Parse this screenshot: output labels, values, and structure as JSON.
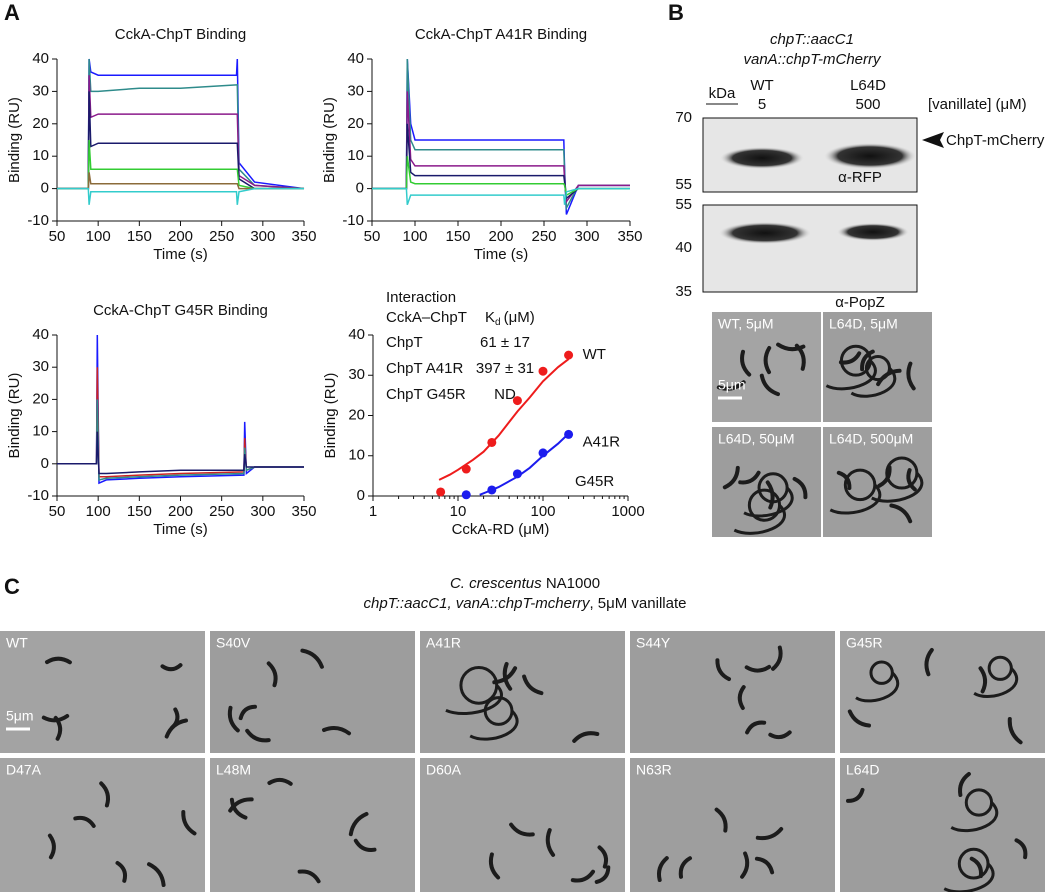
{
  "panel_labels": [
    "A",
    "B",
    "C"
  ],
  "chart_data": [
    {
      "type": "line",
      "title": "CckA-ChpT Binding",
      "xlabel": "Time (s)",
      "ylabel": "Binding (RU)",
      "xlim": [
        50,
        350
      ],
      "xticks": [
        50,
        100,
        150,
        200,
        250,
        300,
        350
      ],
      "ylim": [
        -10,
        40
      ],
      "yticks": [
        -10,
        0,
        10,
        20,
        30,
        40
      ],
      "x": [
        50,
        88,
        89,
        91,
        100,
        150,
        200,
        268,
        269,
        271,
        290,
        350
      ],
      "series": [
        {
          "color": "#1a1aff",
          "values": [
            0,
            0,
            40,
            36,
            35,
            35,
            35,
            35,
            40,
            8,
            2,
            0
          ]
        },
        {
          "color": "#2e8b8b",
          "values": [
            0,
            0,
            40,
            30,
            30,
            31,
            31,
            32,
            32,
            6,
            1,
            0
          ]
        },
        {
          "color": "#8b1a8b",
          "values": [
            0,
            0,
            35,
            22,
            23,
            23,
            23,
            23,
            23,
            4,
            1,
            0
          ]
        },
        {
          "color": "#1a1a6b",
          "values": [
            0,
            0,
            30,
            13,
            14,
            14,
            14,
            14,
            14,
            3,
            0,
            0
          ]
        },
        {
          "color": "#33cc33",
          "values": [
            0,
            0,
            15,
            6,
            6,
            6,
            6,
            6,
            6,
            1,
            0,
            0
          ]
        },
        {
          "color": "#8b6b3a",
          "values": [
            0,
            0,
            5,
            1.5,
            1.5,
            1.5,
            1.5,
            1.5,
            1.5,
            0,
            0,
            0
          ]
        },
        {
          "color": "#33cccc",
          "values": [
            0,
            0,
            -5,
            -1,
            -1,
            -1,
            -1,
            -1,
            -5,
            -1,
            0,
            0
          ]
        }
      ]
    },
    {
      "type": "line",
      "title": "CckA-ChpT A41R Binding",
      "xlabel": "Time (s)",
      "ylabel": "Binding (RU)",
      "xlim": [
        50,
        350
      ],
      "xticks": [
        50,
        100,
        150,
        200,
        250,
        300,
        350
      ],
      "ylim": [
        -10,
        40
      ],
      "yticks": [
        -10,
        0,
        10,
        20,
        30,
        40
      ],
      "x": [
        50,
        90,
        91,
        95,
        100,
        150,
        200,
        273,
        274,
        276,
        290,
        350
      ],
      "series": [
        {
          "color": "#1a1aff",
          "values": [
            0,
            0,
            40,
            20,
            15,
            15,
            15,
            15,
            6,
            -8,
            1,
            1
          ]
        },
        {
          "color": "#2e8b8b",
          "values": [
            0,
            0,
            40,
            15,
            12,
            12,
            12,
            12,
            5,
            -6,
            1,
            1
          ]
        },
        {
          "color": "#8b1a8b",
          "values": [
            0,
            0,
            30,
            9,
            7,
            7,
            7,
            7,
            3,
            -4,
            1,
            1
          ]
        },
        {
          "color": "#1a1a6b",
          "values": [
            0,
            0,
            20,
            5,
            4,
            4,
            4,
            4,
            2,
            -3,
            0,
            0
          ]
        },
        {
          "color": "#33cc33",
          "values": [
            0,
            0,
            10,
            2,
            1.5,
            1.5,
            1.5,
            1.5,
            1,
            -2,
            0,
            0
          ]
        },
        {
          "color": "#33cccc",
          "values": [
            0,
            0,
            -5,
            -2,
            -2,
            -2,
            -2,
            -2,
            -5,
            -1,
            0,
            0
          ]
        }
      ]
    },
    {
      "type": "line",
      "title": "CckA-ChpT G45R Binding",
      "xlabel": "Time (s)",
      "ylabel": "Binding (RU)",
      "xlim": [
        50,
        350
      ],
      "xticks": [
        50,
        100,
        150,
        200,
        250,
        300,
        350
      ],
      "ylim": [
        -10,
        40
      ],
      "yticks": [
        -10,
        0,
        10,
        20,
        30,
        40
      ],
      "x": [
        50,
        98,
        99,
        101,
        110,
        150,
        200,
        277,
        278,
        280,
        290,
        350
      ],
      "series": [
        {
          "color": "#1a1aff",
          "values": [
            0,
            0,
            40,
            -6,
            -5,
            -4.5,
            -4,
            -3.5,
            13,
            -3,
            -1,
            -1
          ]
        },
        {
          "color": "#cc2222",
          "values": [
            0,
            0,
            30,
            -4,
            -4,
            -3.5,
            -3,
            -2.5,
            8,
            -2,
            -1,
            -1
          ]
        },
        {
          "color": "#2e8b8b",
          "values": [
            0,
            0,
            20,
            -5,
            -4.5,
            -4,
            -3.5,
            -3,
            5,
            -2,
            -1,
            -1
          ]
        },
        {
          "color": "#1a1a6b",
          "values": [
            0,
            0,
            10,
            -3,
            -3,
            -2.5,
            -2,
            -2,
            3,
            -1,
            -1,
            -1
          ]
        }
      ]
    },
    {
      "type": "scatter",
      "xlabel": "CckA-RD (μM)",
      "ylabel": "Binding (RU)",
      "log_x": true,
      "xlim": [
        1,
        1000
      ],
      "xticks": [
        1,
        10,
        100,
        1000
      ],
      "ylim": [
        0,
        40
      ],
      "yticks": [
        0,
        10,
        20,
        30,
        40
      ],
      "series": [
        {
          "name": "WT",
          "color": "#ee1c1c",
          "x": [
            6.25,
            12.5,
            25,
            50,
            100,
            200
          ],
          "values": [
            1,
            6.7,
            13.3,
            23.7,
            31,
            35
          ],
          "errors": [
            1,
            1,
            1,
            1,
            1,
            1
          ],
          "fit_x": [
            6,
            8,
            10,
            15,
            20,
            30,
            50,
            70,
            100,
            150,
            200
          ],
          "fit_values": [
            4,
            5.3,
            6.5,
            9,
            11,
            15,
            21,
            24.5,
            28.5,
            32,
            34
          ]
        },
        {
          "name": "A41R",
          "color": "#1c1cee",
          "x": [
            12.5,
            25,
            50,
            100,
            200
          ],
          "values": [
            0.3,
            1.5,
            5.5,
            10.7,
            15.3
          ],
          "errors": [
            0.8,
            0.8,
            1,
            1,
            1
          ],
          "fit_x": [
            18,
            25,
            30,
            50,
            70,
            100,
            150,
            200
          ],
          "fit_values": [
            0.3,
            1.5,
            2.2,
            4.8,
            7,
            10,
            13,
            15.5
          ]
        }
      ],
      "annotations": [
        "G45R"
      ],
      "table": {
        "header": [
          "Interaction",
          "CckA–ChpT"
        ],
        "kd_symbol": "K",
        "kd_sub": "d",
        "kd_unit": "(μM)",
        "rows": [
          [
            "ChpT",
            "61 ± 17"
          ],
          [
            "ChpT A41R",
            "397 ± 31"
          ],
          [
            "ChpT G45R",
            "ND"
          ]
        ]
      }
    }
  ],
  "blot": {
    "title": [
      "chpT::aacC1",
      "vanA::chpT-mCherry"
    ],
    "unit": "kDa",
    "lanes": [
      [
        "WT",
        "5"
      ],
      [
        "L64D",
        "500"
      ]
    ],
    "condition": "[vanillate] (μM)",
    "top_markers": [
      "70",
      "55"
    ],
    "bottom_markers": [
      "55",
      "40",
      "35"
    ],
    "band_label": "ChpT-mCherry",
    "top_antibody": "α-RFP",
    "bottom_antibody": "α-PopZ"
  },
  "micrographs_b": [
    "WT, 5μM",
    "L64D, 5μM",
    "L64D, 50μM",
    "L64D, 500μM"
  ],
  "scale_b": "5μm",
  "panel_c": {
    "title_italic": "C. crescentus",
    "title_rest": " NA1000",
    "subtitle_italic": "chpT::aacC1, vanA::chpT-mcherry",
    "subtitle_rest": ", 5μM vanillate",
    "strains": [
      "WT",
      "S40V",
      "A41R",
      "S44Y",
      "G45R",
      "D47A",
      "L48M",
      "D60A",
      "N63R",
      "L64D"
    ],
    "scale": "5μm"
  }
}
